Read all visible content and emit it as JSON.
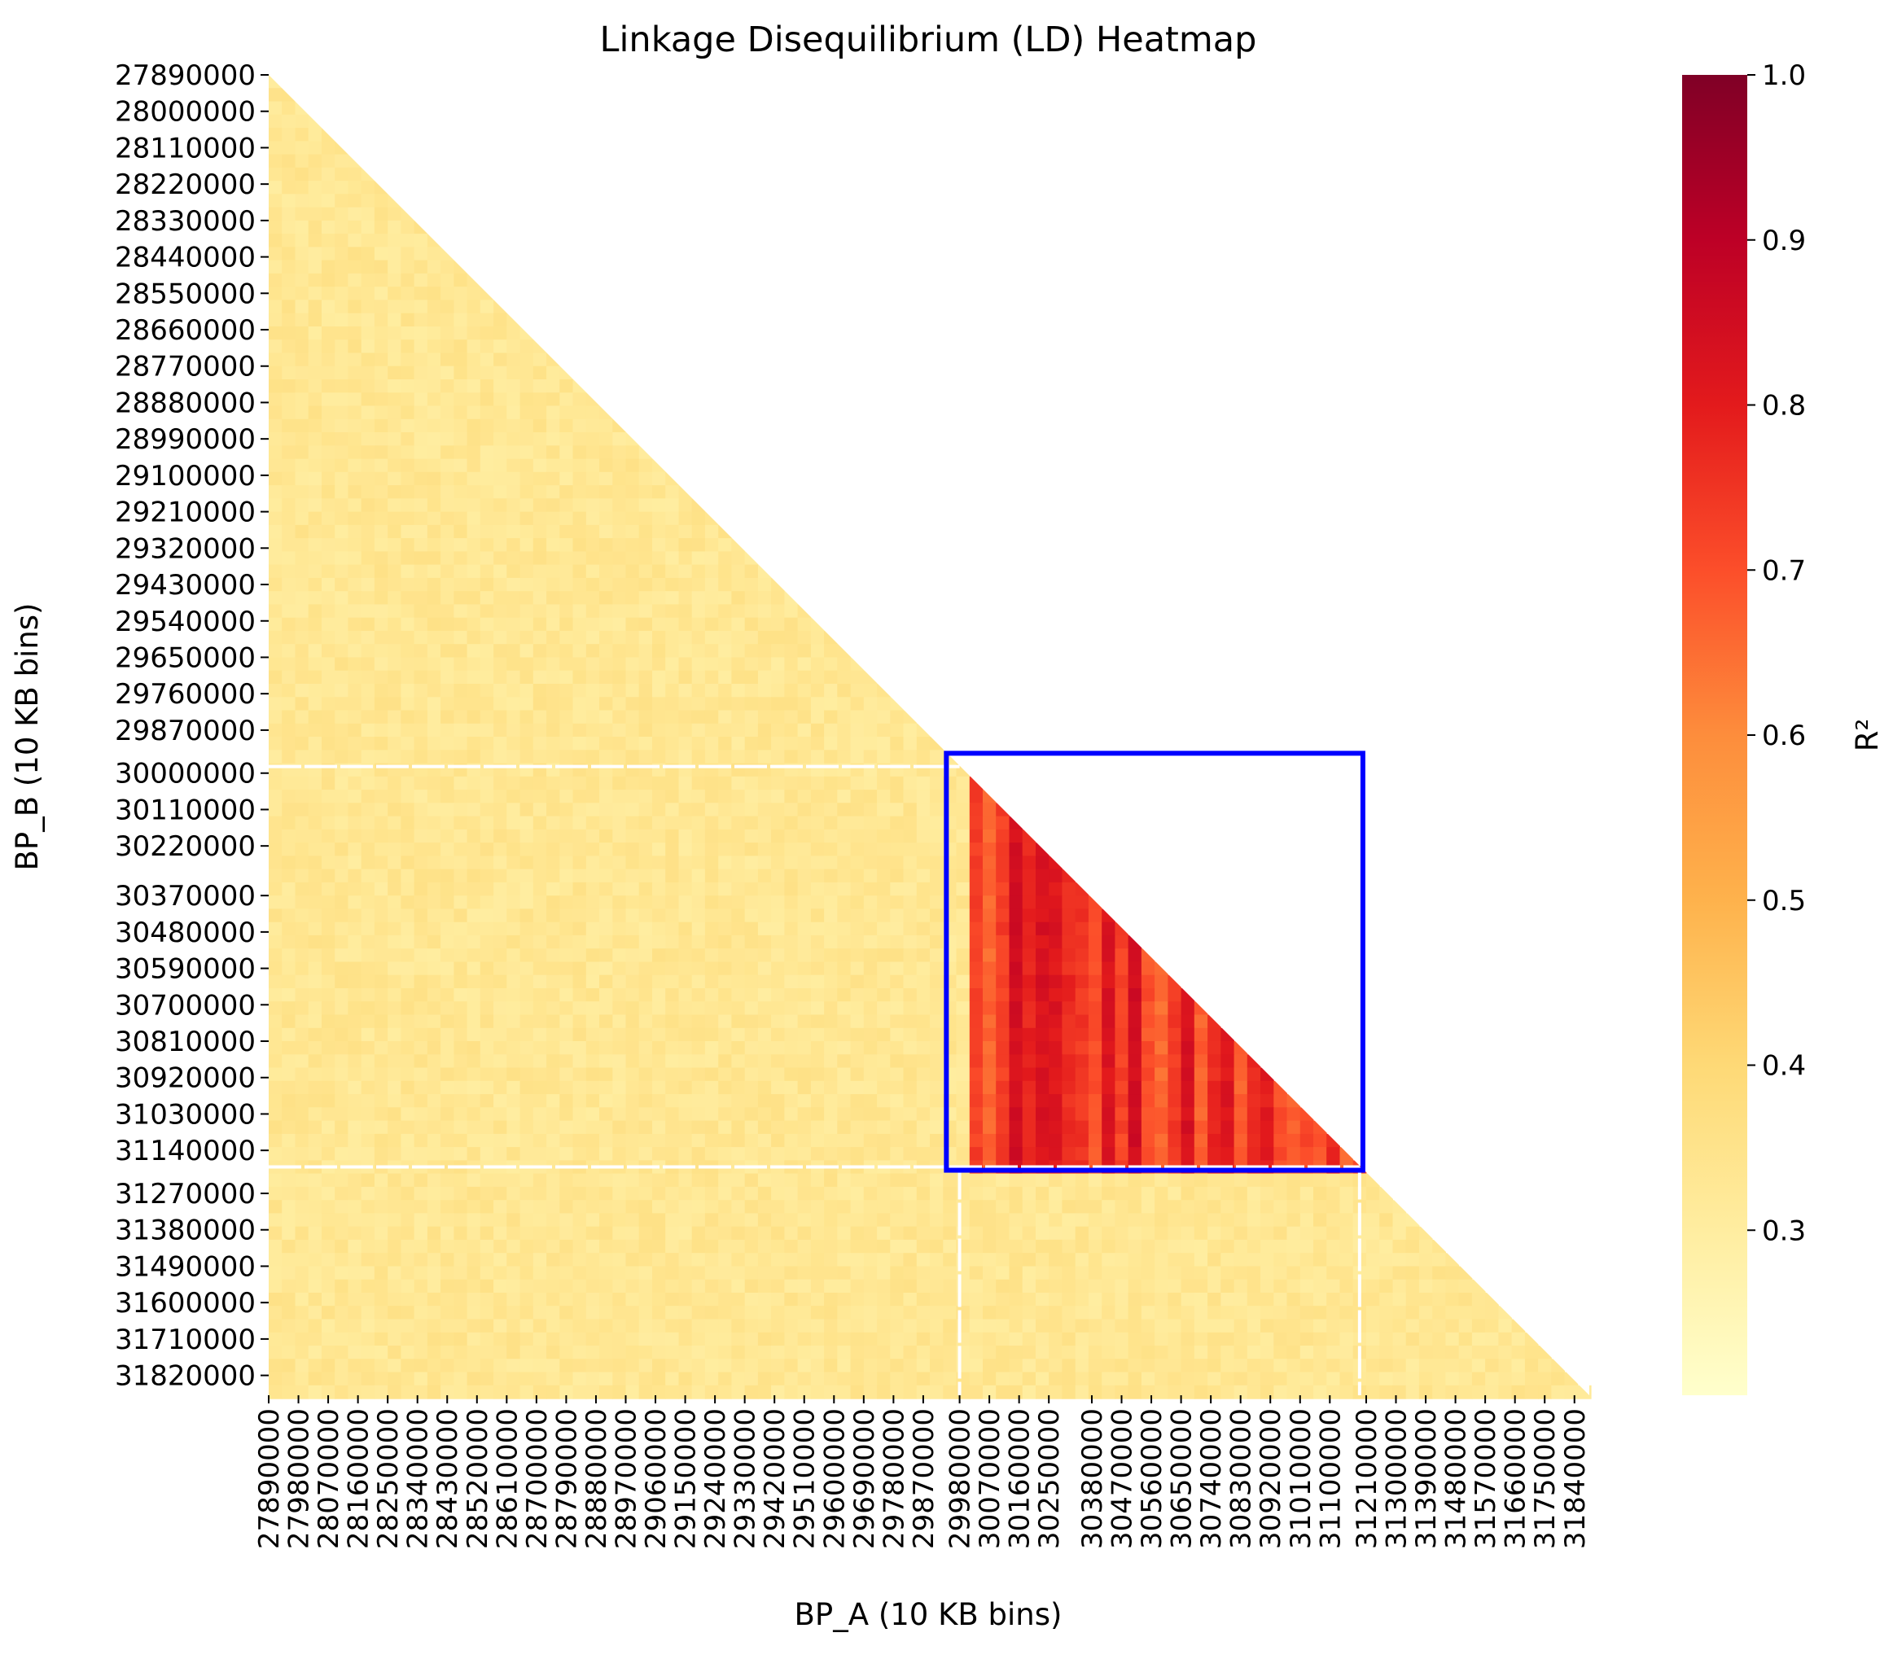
{
  "chart_data": {
    "type": "heatmap",
    "title": "Linkage Disequilibrium (LD) Heatmap",
    "xlabel": "BP_A (10 KB bins)",
    "ylabel": "BP_B (10 KB bins)",
    "layout": "lower-triangle",
    "bin_size": 10000,
    "range_start": 27890000,
    "range_end": 31880000,
    "y_ticks": [
      27890000,
      28000000,
      28110000,
      28220000,
      28330000,
      28440000,
      28550000,
      28660000,
      28770000,
      28880000,
      28990000,
      29100000,
      29210000,
      29320000,
      29430000,
      29540000,
      29650000,
      29760000,
      29870000,
      30000000,
      30110000,
      30220000,
      30370000,
      30480000,
      30590000,
      30700000,
      30810000,
      30920000,
      31030000,
      31140000,
      31270000,
      31380000,
      31490000,
      31600000,
      31710000,
      31820000
    ],
    "x_ticks": [
      27890000,
      27980000,
      28070000,
      28160000,
      28250000,
      28340000,
      28430000,
      28520000,
      28610000,
      28700000,
      28790000,
      28880000,
      28970000,
      29060000,
      29150000,
      29240000,
      29330000,
      29420000,
      29510000,
      29600000,
      29690000,
      29780000,
      29870000,
      29980000,
      30070000,
      30160000,
      30250000,
      30380000,
      30470000,
      30560000,
      30650000,
      30740000,
      30830000,
      30920000,
      31010000,
      31100000,
      31210000,
      31300000,
      31390000,
      31480000,
      31570000,
      31660000,
      31750000,
      31840000
    ],
    "background_r2": 0.32,
    "high_ld_block": {
      "start": 29980000,
      "end": 31190000,
      "mean_r2": 0.74,
      "min_r2": 0.6,
      "max_r2": 0.92
    },
    "highlight_box": {
      "start": 29940000,
      "end": 31200000,
      "color": "#0000ff"
    },
    "colorbar": {
      "label": "R²",
      "vmin": 0.2,
      "vmax": 1.0,
      "ticks": [
        "0.3",
        "0.4",
        "0.5",
        "0.6",
        "0.7",
        "0.8",
        "0.9",
        "1.0"
      ],
      "colormap": "YlOrRd",
      "colors": [
        "#ffffcc",
        "#ffeda0",
        "#fed976",
        "#feb24c",
        "#fd8d3c",
        "#fc4e2a",
        "#e31a1c",
        "#bd0026",
        "#800026"
      ]
    }
  }
}
